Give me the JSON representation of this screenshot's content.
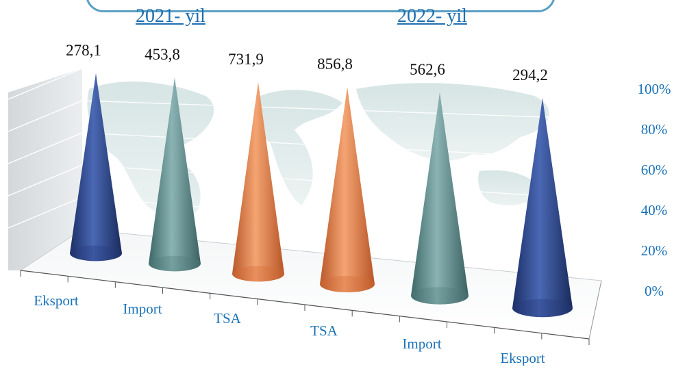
{
  "header": {
    "year_2021": "2021- yil",
    "year_2022": " 2022- yil"
  },
  "chart_data": {
    "type": "bar",
    "shape": "cone",
    "groups": [
      {
        "label": "2021- yil",
        "categories": [
          "Eksport",
          "Import",
          "TSA"
        ]
      },
      {
        "label": "2022- yil",
        "categories": [
          "TSA",
          "Import",
          "Eksport"
        ]
      }
    ],
    "categories": [
      "Eksport",
      "Import",
      "TSA",
      "TSA",
      "Import",
      "Eksport"
    ],
    "values": [
      278.1,
      453.8,
      731.9,
      856.8,
      562.6,
      294.2
    ],
    "value_labels": [
      "278,1",
      "453,8",
      "731,9",
      "856,8",
      "562,6",
      "294,2"
    ],
    "y_tick_labels": [
      "0%",
      "20%",
      "40%",
      "60%",
      "80%",
      "100%"
    ],
    "ylim": [
      0,
      100
    ],
    "grid": true,
    "colors": {
      "Eksport": "#2e4a8e",
      "Import": "#5e8c8c",
      "TSA": "#e07e45",
      "axis_text": "#1a72b8",
      "value_text": "#111111"
    }
  }
}
